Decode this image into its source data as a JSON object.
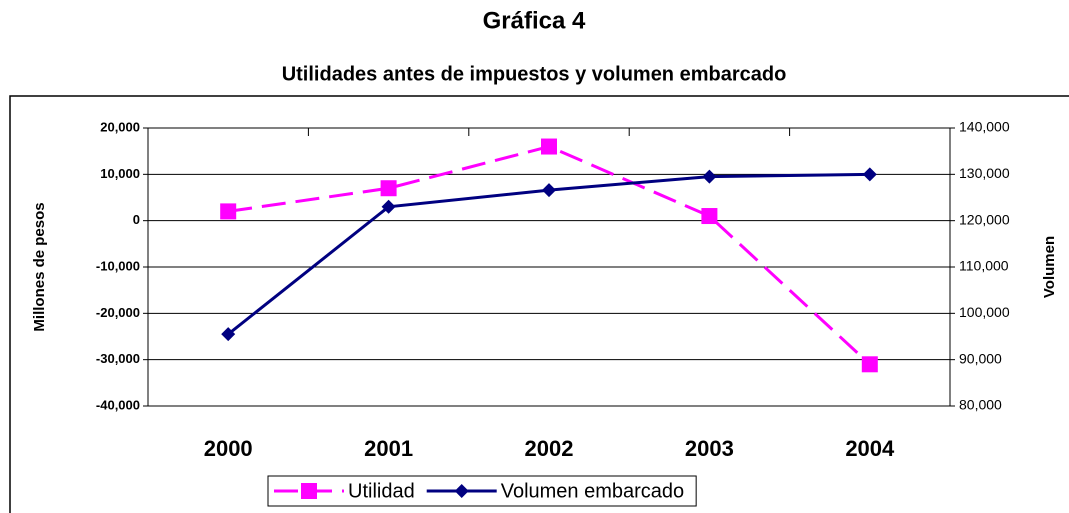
{
  "chart_data": {
    "type": "line",
    "title": "Gráfica 4",
    "subtitle": "Utilidades antes de impuestos y volumen embarcado",
    "y_label": "Millones de pesos",
    "y2_label": "Volumen",
    "categories": [
      "2000",
      "2001",
      "2002",
      "2003",
      "2004"
    ],
    "series": [
      {
        "name": "Utilidad",
        "color": "#ff00ff",
        "dashed": true,
        "marker": "square",
        "values": [
          2000,
          7000,
          16000,
          1000,
          -31000
        ]
      },
      {
        "name": "Volumen embarcado",
        "color": "#000080",
        "dashed": false,
        "marker": "diamond",
        "axis": "y2",
        "values": [
          95500,
          123000,
          126600,
          129500,
          130000
        ]
      }
    ],
    "ylim": [
      -40000,
      20000
    ],
    "yticks": [
      {
        "value": -40000,
        "label": "-40,000"
      },
      {
        "value": -30000,
        "label": "-30,000"
      },
      {
        "value": -20000,
        "label": "-20,000"
      },
      {
        "value": -10000,
        "label": "-10,000"
      },
      0,
      {
        "value": 10000,
        "label": "10,000"
      },
      {
        "value": 20000,
        "label": "20,000"
      }
    ],
    "y2lim": [
      80000,
      140000
    ],
    "y2ticks": [
      {
        "value": 80000,
        "label": "80,000"
      },
      {
        "value": 90000,
        "label": "90,000"
      },
      {
        "value": 100000,
        "label": "100,000"
      },
      {
        "value": 110000,
        "label": "110,000"
      },
      {
        "value": 120000,
        "label": "120,000"
      },
      {
        "value": 130000,
        "label": "130,000"
      },
      {
        "value": 140000,
        "label": "140,000"
      }
    ],
    "grid": true,
    "legend": "bottom"
  }
}
